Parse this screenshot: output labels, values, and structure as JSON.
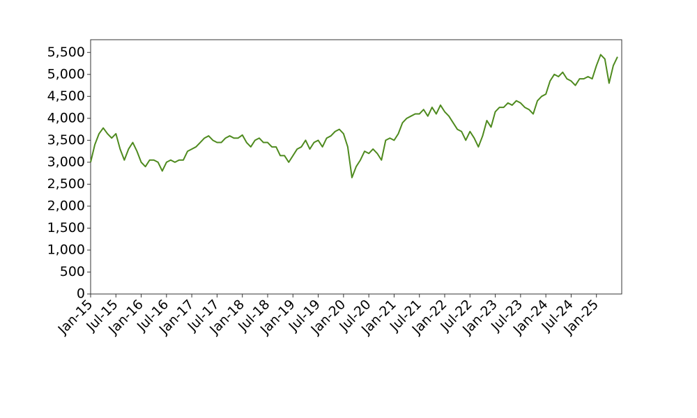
{
  "chart_data": {
    "type": "line",
    "x": [
      "2015-01",
      "2015-02",
      "2015-03",
      "2015-04",
      "2015-05",
      "2015-06",
      "2015-07",
      "2015-08",
      "2015-09",
      "2015-10",
      "2015-11",
      "2015-12",
      "2016-01",
      "2016-02",
      "2016-03",
      "2016-04",
      "2016-05",
      "2016-06",
      "2016-07",
      "2016-08",
      "2016-09",
      "2016-10",
      "2016-11",
      "2016-12",
      "2017-01",
      "2017-02",
      "2017-03",
      "2017-04",
      "2017-05",
      "2017-06",
      "2017-07",
      "2017-08",
      "2017-09",
      "2017-10",
      "2017-11",
      "2017-12",
      "2018-01",
      "2018-02",
      "2018-03",
      "2018-04",
      "2018-05",
      "2018-06",
      "2018-07",
      "2018-08",
      "2018-09",
      "2018-10",
      "2018-11",
      "2018-12",
      "2019-01",
      "2019-02",
      "2019-03",
      "2019-04",
      "2019-05",
      "2019-06",
      "2019-07",
      "2019-08",
      "2019-09",
      "2019-10",
      "2019-11",
      "2019-12",
      "2020-01",
      "2020-02",
      "2020-03",
      "2020-04",
      "2020-05",
      "2020-06",
      "2020-07",
      "2020-08",
      "2020-09",
      "2020-10",
      "2020-11",
      "2020-12",
      "2021-01",
      "2021-02",
      "2021-03",
      "2021-04",
      "2021-05",
      "2021-06",
      "2021-07",
      "2021-08",
      "2021-09",
      "2021-10",
      "2021-11",
      "2021-12",
      "2022-01",
      "2022-02",
      "2022-03",
      "2022-04",
      "2022-05",
      "2022-06",
      "2022-07",
      "2022-08",
      "2022-09",
      "2022-10",
      "2022-11",
      "2022-12",
      "2023-01",
      "2023-02",
      "2023-03",
      "2023-04",
      "2023-05",
      "2023-06",
      "2023-07",
      "2023-08",
      "2023-09",
      "2023-10",
      "2023-11",
      "2023-12",
      "2024-01",
      "2024-02",
      "2024-03",
      "2024-04",
      "2024-05",
      "2024-06",
      "2024-07",
      "2024-08",
      "2024-09",
      "2024-10",
      "2024-11",
      "2024-12",
      "2025-01",
      "2025-02",
      "2025-03",
      "2025-04",
      "2025-05",
      "2025-06"
    ],
    "series": [
      {
        "color": "#4e8a1e",
        "values": [
          3000,
          3400,
          3650,
          3780,
          3650,
          3550,
          3650,
          3300,
          3050,
          3300,
          3450,
          3250,
          3000,
          2900,
          3050,
          3050,
          3000,
          2800,
          3000,
          3050,
          3000,
          3050,
          3050,
          3250,
          3300,
          3350,
          3450,
          3550,
          3600,
          3500,
          3450,
          3450,
          3550,
          3600,
          3550,
          3550,
          3620,
          3450,
          3350,
          3500,
          3550,
          3450,
          3450,
          3350,
          3350,
          3150,
          3150,
          3000,
          3150,
          3300,
          3350,
          3500,
          3300,
          3450,
          3500,
          3350,
          3550,
          3600,
          3700,
          3750,
          3650,
          3350,
          2650,
          2900,
          3050,
          3250,
          3200,
          3300,
          3200,
          3050,
          3500,
          3550,
          3500,
          3650,
          3900,
          4000,
          4050,
          4100,
          4100,
          4200,
          4050,
          4250,
          4100,
          4300,
          4150,
          4050,
          3900,
          3750,
          3700,
          3500,
          3700,
          3550,
          3350,
          3600,
          3950,
          3800,
          4150,
          4250,
          4250,
          4350,
          4300,
          4400,
          4350,
          4250,
          4200,
          4100,
          4400,
          4500,
          4550,
          4850,
          5000,
          4950,
          5050,
          4900,
          4850,
          4750,
          4900,
          4900,
          4950,
          4900,
          5200,
          5450,
          5350,
          4800,
          5200,
          5400
        ]
      }
    ],
    "xlim": [
      "2015-01",
      "2025-07"
    ],
    "xticks": [
      {
        "value": "2015-01",
        "label": "Jan-15"
      },
      {
        "value": "2015-07",
        "label": "Jul-15"
      },
      {
        "value": "2016-01",
        "label": "Jan-16"
      },
      {
        "value": "2016-07",
        "label": "Jul-16"
      },
      {
        "value": "2017-01",
        "label": "Jan-17"
      },
      {
        "value": "2017-07",
        "label": "Jul-17"
      },
      {
        "value": "2018-01",
        "label": "Jan-18"
      },
      {
        "value": "2018-07",
        "label": "Jul-18"
      },
      {
        "value": "2019-01",
        "label": "Jan-19"
      },
      {
        "value": "2019-07",
        "label": "Jul-19"
      },
      {
        "value": "2020-01",
        "label": "Jan-20"
      },
      {
        "value": "2020-07",
        "label": "Jul-20"
      },
      {
        "value": "2021-01",
        "label": "Jan-21"
      },
      {
        "value": "2021-07",
        "label": "Jul-21"
      },
      {
        "value": "2022-01",
        "label": "Jan-22"
      },
      {
        "value": "2022-07",
        "label": "Jul-22"
      },
      {
        "value": "2023-01",
        "label": "Jan-23"
      },
      {
        "value": "2023-07",
        "label": "Jul-23"
      },
      {
        "value": "2024-01",
        "label": "Jan-24"
      },
      {
        "value": "2024-07",
        "label": "Jul-24"
      },
      {
        "value": "2025-01",
        "label": "Jan-25"
      }
    ],
    "ylim": [
      0,
      5790
    ],
    "yticks": [
      0,
      500,
      {
        "value": 1000,
        "label": "1,000"
      },
      {
        "value": 1500,
        "label": "1,500"
      },
      {
        "value": 2000,
        "label": "2,000"
      },
      {
        "value": 2500,
        "label": "2,500"
      },
      {
        "value": 3000,
        "label": "3,000"
      },
      {
        "value": 3500,
        "label": "3,500"
      },
      {
        "value": 4000,
        "label": "4,000"
      },
      {
        "value": 4500,
        "label": "4,500"
      },
      {
        "value": 5000,
        "label": "5,000"
      },
      {
        "value": 5500,
        "label": "5,500"
      }
    ]
  }
}
